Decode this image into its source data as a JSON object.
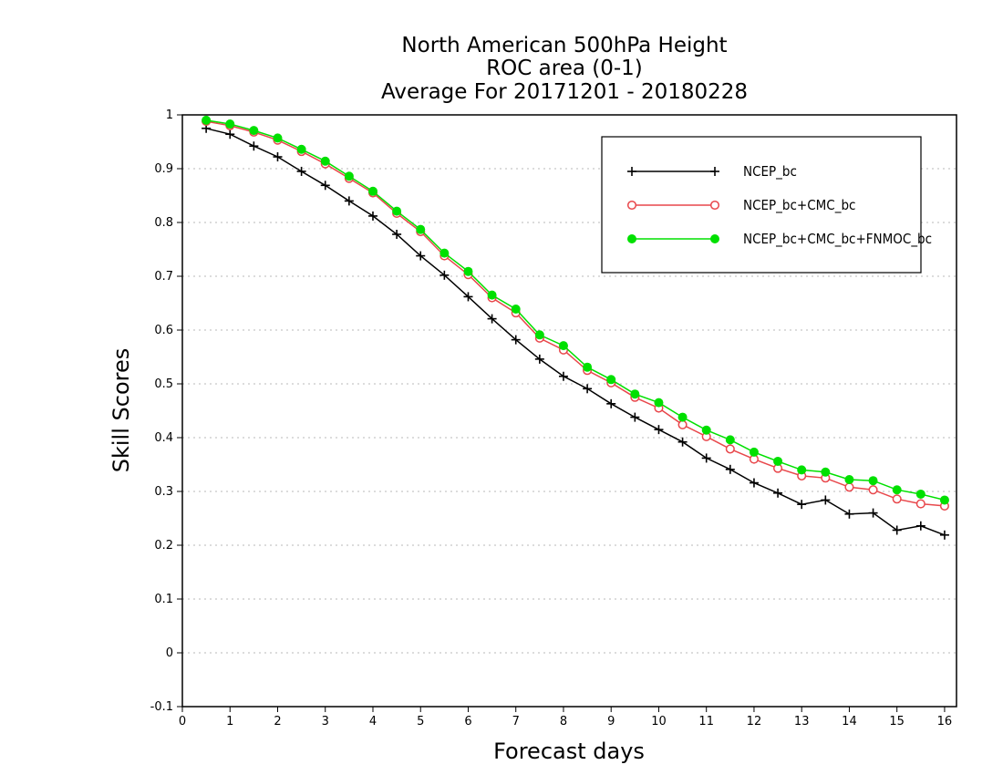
{
  "chart_data": {
    "type": "line",
    "title": [
      "North American 500hPa Height",
      "ROC area (0-1)",
      "Average For 20171201 - 20180228"
    ],
    "xlabel": "Forecast days",
    "ylabel": "Skill Scores",
    "xlim": [
      0,
      16.25
    ],
    "ylim": [
      -0.1,
      1
    ],
    "xticks": [
      0,
      1,
      2,
      3,
      4,
      5,
      6,
      7,
      8,
      9,
      10,
      11,
      12,
      13,
      14,
      15,
      16
    ],
    "xtick_labels": [
      "0",
      "1",
      "2",
      "3",
      "4",
      "5",
      "6",
      "7",
      "8",
      "9",
      "10",
      "11",
      "12",
      "13",
      "14",
      "15",
      "16"
    ],
    "yticks": [
      -0.1,
      0,
      0.1,
      0.2,
      0.3,
      0.4,
      0.5,
      0.6,
      0.7,
      0.8,
      0.9,
      1
    ],
    "ytick_labels": [
      "-0.1",
      "0",
      "0.1",
      "0.2",
      "0.3",
      "0.4",
      "0.5",
      "0.6",
      "0.7",
      "0.8",
      "0.9",
      "1"
    ],
    "grid": "horizontal dotted",
    "legend_position": "top-right",
    "x": [
      0.5,
      1,
      1.5,
      2,
      2.5,
      3,
      3.5,
      4,
      4.5,
      5,
      5.5,
      6,
      6.5,
      7,
      7.5,
      8,
      8.5,
      9,
      9.5,
      10,
      10.5,
      11,
      11.5,
      12,
      12.5,
      13,
      13.5,
      14,
      14.5,
      15,
      15.5,
      16
    ],
    "series": [
      {
        "name": "NCEP_bc",
        "color": "#000000",
        "marker": "plus",
        "values": [
          0.975,
          0.964,
          0.942,
          0.922,
          0.895,
          0.869,
          0.84,
          0.812,
          0.778,
          0.738,
          0.702,
          0.662,
          0.621,
          0.582,
          0.546,
          0.514,
          0.491,
          0.463,
          0.438,
          0.415,
          0.392,
          0.362,
          0.341,
          0.316,
          0.297,
          0.276,
          0.284,
          0.258,
          0.26,
          0.228,
          0.236,
          0.219
        ]
      },
      {
        "name": "NCEP_bc+CMC_bc",
        "color": "#e8474b",
        "marker": "open-circle",
        "values": [
          0.988,
          0.98,
          0.968,
          0.953,
          0.932,
          0.909,
          0.882,
          0.855,
          0.817,
          0.783,
          0.738,
          0.703,
          0.66,
          0.632,
          0.585,
          0.563,
          0.525,
          0.502,
          0.475,
          0.455,
          0.424,
          0.402,
          0.379,
          0.36,
          0.343,
          0.329,
          0.325,
          0.308,
          0.303,
          0.286,
          0.277,
          0.273
        ]
      },
      {
        "name": "NCEP_bc+CMC_bc+FNMOC_bc",
        "color": "#00e000",
        "marker": "filled-circle",
        "values": [
          0.99,
          0.983,
          0.971,
          0.957,
          0.936,
          0.914,
          0.886,
          0.858,
          0.821,
          0.787,
          0.743,
          0.709,
          0.665,
          0.639,
          0.591,
          0.571,
          0.531,
          0.508,
          0.481,
          0.465,
          0.438,
          0.414,
          0.396,
          0.373,
          0.356,
          0.34,
          0.336,
          0.322,
          0.32,
          0.303,
          0.295,
          0.284
        ]
      }
    ]
  }
}
